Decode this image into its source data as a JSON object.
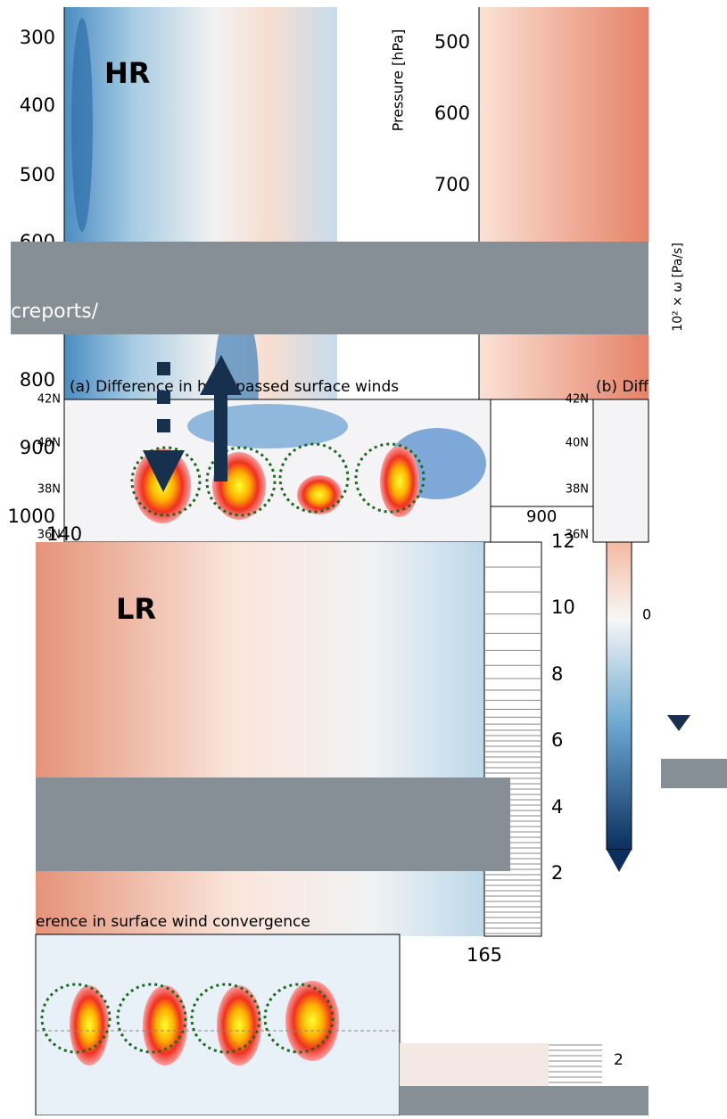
{
  "top_left": {
    "label": "HR",
    "yticks": [
      "300",
      "400",
      "500",
      "600",
      "800",
      "900",
      "1000"
    ]
  },
  "top_right": {
    "ylabel": "Pressure [hPa]",
    "yticks": [
      "500",
      "600",
      "700"
    ]
  },
  "colorbar_label": "10² × ω [Pa/s]",
  "banner": "creports/",
  "map_a": {
    "title": "(a) Difference in high-passed surface winds",
    "lat_labels": [
      "42N",
      "40N",
      "38N",
      "36N"
    ],
    "x_label": "140"
  },
  "map_b": {
    "title": "(b) Diff",
    "lat_labels": [
      "42N",
      "40N",
      "38N",
      "36N"
    ]
  },
  "fragment": {
    "tick": "900"
  },
  "lower": {
    "label": "LR",
    "right_ticks": [
      "12",
      "10",
      "8",
      "6",
      "4",
      "2"
    ],
    "x_label": "165",
    "colorbar_tick": "0"
  },
  "map_bottom": {
    "title": "erence in surface wind convergence"
  },
  "strip": {
    "tick": "2"
  }
}
